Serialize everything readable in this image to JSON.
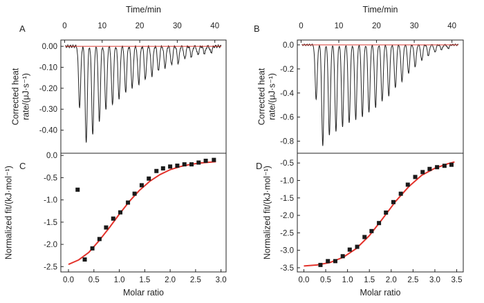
{
  "chart_data": [
    {
      "panel": "A",
      "type": "line",
      "xlabel": "Time/min",
      "ylabel": [
        "Corrected heat",
        "rate/(μJ·s⁻¹)"
      ],
      "xlim": [
        -1,
        43
      ],
      "ylim": [
        -0.51,
        0.03
      ],
      "xticks": [
        0,
        10,
        20,
        30,
        40
      ],
      "yticks": [
        0.0,
        -0.1,
        -0.2,
        -0.3,
        -0.4
      ],
      "ytick_labels": [
        "0.00",
        "-0.10",
        "-0.20",
        "-0.30",
        "-0.40"
      ],
      "baseline": 0.0,
      "injection_times": [
        4.0,
        5.75,
        7.5,
        9.25,
        11.0,
        12.75,
        14.5,
        16.25,
        18.0,
        19.75,
        21.5,
        23.25,
        25.0,
        26.75,
        28.5,
        30.25,
        32.0,
        33.75,
        35.5,
        37.25,
        39.0
      ],
      "peak_values": [
        -0.29,
        -0.46,
        -0.42,
        -0.36,
        -0.3,
        -0.28,
        -0.25,
        -0.22,
        -0.2,
        -0.18,
        -0.16,
        -0.14,
        -0.12,
        -0.1,
        -0.09,
        -0.08,
        -0.06,
        -0.05,
        -0.04,
        -0.035,
        -0.03
      ],
      "colors": {
        "trace": "#222222",
        "baseline": "#d9372f"
      }
    },
    {
      "panel": "B",
      "type": "line",
      "xlabel": "Time/min",
      "ylabel": [
        "Corrected heat",
        "rate/(μJ·s⁻¹)"
      ],
      "xlim": [
        -1,
        43
      ],
      "ylim": [
        -0.9,
        0.04
      ],
      "xticks": [
        0,
        10,
        20,
        30,
        40
      ],
      "yticks": [
        0.0,
        -0.2,
        -0.4,
        -0.6,
        -0.8
      ],
      "ytick_labels": [
        "0.0",
        "-0.2",
        "-0.4",
        "-0.6",
        "-0.8"
      ],
      "baseline": 0.0,
      "injection_times": [
        4.0,
        5.75,
        7.5,
        9.25,
        11.0,
        12.75,
        14.5,
        16.25,
        18.0,
        19.75,
        21.5,
        23.25,
        25.0,
        26.75,
        28.5,
        30.25,
        32.0,
        33.75,
        35.5,
        37.25,
        39.0
      ],
      "peak_values": [
        -0.45,
        -0.84,
        -0.75,
        -0.72,
        -0.68,
        -0.65,
        -0.62,
        -0.6,
        -0.56,
        -0.52,
        -0.47,
        -0.42,
        -0.36,
        -0.3,
        -0.24,
        -0.18,
        -0.13,
        -0.09,
        -0.06,
        -0.04,
        -0.03
      ],
      "colors": {
        "trace": "#222222",
        "baseline": "#d9372f"
      }
    },
    {
      "panel": "C",
      "type": "scatter",
      "xlabel": "Molar ratio",
      "ylabel": [
        "Normalized fit/(kJ·mol⁻¹)"
      ],
      "xlim": [
        -0.15,
        3.1
      ],
      "ylim": [
        -2.62,
        0.05
      ],
      "xticks": [
        0.0,
        0.5,
        1.0,
        1.5,
        2.0,
        2.5,
        3.0
      ],
      "xtick_labels": [
        "0.0",
        "0.5",
        "1.0",
        "1.5",
        "2.0",
        "2.5",
        "3.0"
      ],
      "yticks": [
        0.0,
        -0.5,
        -1.0,
        -1.5,
        -2.0,
        -2.5
      ],
      "ytick_labels": [
        "0.0",
        "-0.5",
        "-1.0",
        "-1.5",
        "-2.0",
        "-2.5"
      ],
      "points": {
        "x": [
          0.18,
          0.32,
          0.47,
          0.61,
          0.74,
          0.88,
          1.02,
          1.17,
          1.3,
          1.44,
          1.58,
          1.73,
          1.86,
          2.0,
          2.14,
          2.28,
          2.42,
          2.56,
          2.7,
          2.86
        ],
        "y": [
          -0.77,
          -2.34,
          -2.09,
          -1.88,
          -1.62,
          -1.42,
          -1.28,
          -1.06,
          -0.86,
          -0.67,
          -0.52,
          -0.35,
          -0.29,
          -0.25,
          -0.23,
          -0.2,
          -0.2,
          -0.16,
          -0.12,
          -0.1
        ]
      },
      "fit": {
        "x": [
          0.0,
          0.2,
          0.4,
          0.6,
          0.8,
          1.0,
          1.2,
          1.4,
          1.6,
          1.8,
          2.0,
          2.2,
          2.4,
          2.6,
          2.8,
          2.9
        ],
        "y": [
          -2.45,
          -2.35,
          -2.18,
          -1.92,
          -1.63,
          -1.32,
          -1.03,
          -0.78,
          -0.58,
          -0.43,
          -0.32,
          -0.25,
          -0.2,
          -0.17,
          -0.15,
          -0.14
        ]
      },
      "colors": {
        "points": "#1a1a1a",
        "fit": "#e3322b"
      }
    },
    {
      "panel": "D",
      "type": "scatter",
      "xlabel": "Molar ratio",
      "ylabel": [
        "Normalized fit/(kJ·mol⁻¹)"
      ],
      "xlim": [
        -0.15,
        3.65
      ],
      "ylim": [
        -3.62,
        -0.22
      ],
      "xticks": [
        0.0,
        0.5,
        1.0,
        1.5,
        2.0,
        2.5,
        3.0,
        3.5
      ],
      "xtick_labels": [
        "0.0",
        "0.5",
        "1.0",
        "1.5",
        "2.0",
        "2.5",
        "3.0",
        "3.5"
      ],
      "yticks": [
        -0.5,
        -1.0,
        -1.5,
        -2.0,
        -2.5,
        -3.0,
        -3.5
      ],
      "ytick_labels": [
        "-0.5",
        "-1.0",
        "-1.5",
        "-2.0",
        "-2.5",
        "-3.0",
        "-3.5"
      ],
      "points": {
        "x": [
          0.38,
          0.55,
          0.72,
          0.89,
          1.05,
          1.22,
          1.39,
          1.55,
          1.72,
          1.88,
          2.05,
          2.22,
          2.38,
          2.55,
          2.72,
          2.88,
          3.05,
          3.22,
          3.38
        ],
        "y": [
          -3.42,
          -3.31,
          -3.31,
          -3.17,
          -2.98,
          -2.9,
          -2.62,
          -2.45,
          -2.22,
          -1.92,
          -1.62,
          -1.38,
          -1.12,
          -0.9,
          -0.76,
          -0.67,
          -0.62,
          -0.58,
          -0.55
        ]
      },
      "fit": {
        "x": [
          0.0,
          0.3,
          0.6,
          0.9,
          1.2,
          1.5,
          1.8,
          2.1,
          2.4,
          2.7,
          3.0,
          3.3,
          3.45
        ],
        "y": [
          -3.45,
          -3.42,
          -3.35,
          -3.2,
          -2.95,
          -2.58,
          -2.1,
          -1.6,
          -1.18,
          -0.85,
          -0.65,
          -0.52,
          -0.47
        ]
      },
      "colors": {
        "points": "#1a1a1a",
        "fit": "#e3322b"
      }
    }
  ]
}
